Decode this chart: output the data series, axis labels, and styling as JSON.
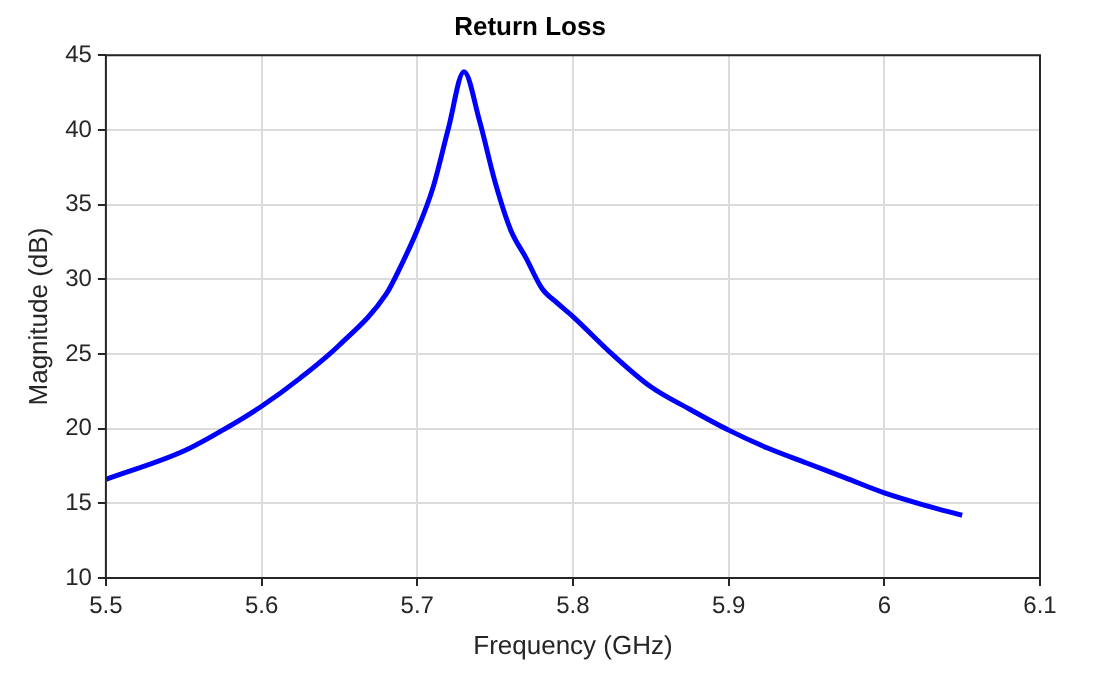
{
  "chart_data": {
    "type": "line",
    "title": "Return Loss",
    "xlabel": "Frequency (GHz)",
    "ylabel": "Magnitude (dB)",
    "x": [
      5.5,
      5.55,
      5.575,
      5.6,
      5.625,
      5.65,
      5.68,
      5.69,
      5.7,
      5.71,
      5.72,
      5.73,
      5.74,
      5.75,
      5.76,
      5.77,
      5.78,
      5.79,
      5.8,
      5.825,
      5.85,
      5.875,
      5.9,
      5.925,
      5.95,
      5.975,
      6.0,
      6.025,
      6.05
    ],
    "series": [
      {
        "color": "#0000ff",
        "values": [
          16.6,
          18.5,
          19.9,
          21.5,
          23.4,
          25.6,
          29.0,
          31.0,
          33.3,
          36.1,
          40.1,
          43.9,
          40.6,
          36.5,
          33.3,
          31.4,
          29.4,
          28.4,
          27.5,
          25.0,
          22.8,
          21.3,
          19.9,
          18.7,
          17.7,
          16.7,
          15.7,
          14.9,
          14.2
        ]
      }
    ],
    "xlim": [
      5.5,
      6.1
    ],
    "xticks": [
      5.5,
      5.6,
      5.7,
      5.8,
      5.9,
      6,
      6.1
    ],
    "ylim": [
      10,
      45
    ],
    "yticks": [
      10,
      15,
      20,
      25,
      30,
      35,
      40,
      45
    ],
    "grid": true,
    "legend": false,
    "marker": "none",
    "line_style": "solid"
  }
}
